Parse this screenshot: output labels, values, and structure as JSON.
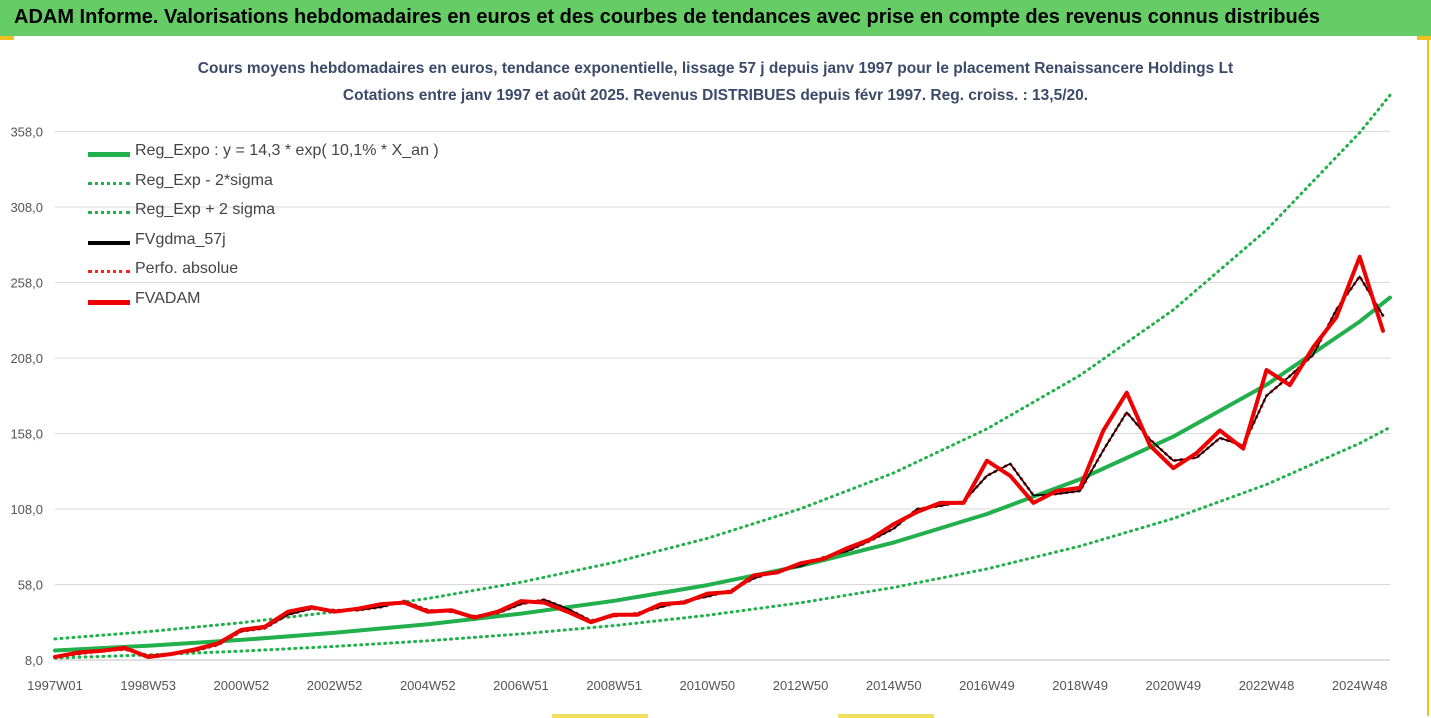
{
  "header": {
    "title": "ADAM Informe. Valorisations hebdomadaires en euros et des courbes de tendances avec prise en compte des revenus connus distribués"
  },
  "chart_data": {
    "type": "line",
    "title_line1": "Cours moyens hebdomadaires en euros, tendance exponentielle, lissage 57 j depuis janv 1997 pour le placement Renaissancere Holdings Lt",
    "title_line2": "Cotations entre janv 1997 et août 2025.  Revenus DISTRIBUES depuis févr 1997.  Reg. croiss. : 13,5/20.",
    "xlabel": "",
    "ylabel": "",
    "ylim": [
      8.0,
      400.0
    ],
    "xlim": [
      1997.0,
      2025.65
    ],
    "y_ticks": [
      "8,0",
      "58,0",
      "108,0",
      "158,0",
      "208,0",
      "258,0",
      "308,0",
      "358,0"
    ],
    "y_tick_values": [
      8,
      58,
      108,
      158,
      208,
      258,
      308,
      358
    ],
    "x_ticks": [
      "1997W01",
      "1998W53",
      "2000W52",
      "2002W52",
      "2004W52",
      "2006W51",
      "2008W51",
      "2010W50",
      "2012W50",
      "2014W50",
      "2016W49",
      "2018W49",
      "2020W49",
      "2022W48",
      "2024W48"
    ],
    "x_tick_values": [
      1997.0,
      1999.0,
      2001.0,
      2003.0,
      2005.0,
      2007.0,
      2009.0,
      2011.0,
      2013.0,
      2015.0,
      2017.0,
      2019.0,
      2021.0,
      2023.0,
      2025.0
    ],
    "grid": "horizontal",
    "legend_position": "top-left",
    "series": [
      {
        "name": "Reg_Expo : y = 14,3 * exp( 10,1% *  X_an )",
        "color": "#21b04b",
        "style": "solid-thick",
        "x": [
          1997.0,
          1999.0,
          2001.0,
          2003.0,
          2005.0,
          2007.0,
          2009.0,
          2011.0,
          2013.0,
          2015.0,
          2017.0,
          2019.0,
          2021.0,
          2023.0,
          2025.0,
          2025.65
        ],
        "values": [
          14.3,
          17.5,
          21.3,
          26.0,
          31.7,
          38.7,
          47.2,
          57.6,
          70.3,
          85.8,
          104.7,
          127.7,
          155.9,
          190.2,
          232.1,
          248.0
        ]
      },
      {
        "name": "Reg_Exp - 2*sigma",
        "color": "#21b04b",
        "style": "dotted",
        "x": [
          1997.0,
          1999.0,
          2001.0,
          2003.0,
          2005.0,
          2007.0,
          2009.0,
          2011.0,
          2013.0,
          2015.0,
          2017.0,
          2019.0,
          2021.0,
          2023.0,
          2025.0,
          2025.65
        ],
        "values": [
          9.3,
          11.4,
          13.9,
          17.0,
          20.7,
          25.3,
          30.8,
          37.6,
          45.9,
          56.0,
          68.3,
          83.4,
          101.7,
          124.2,
          151.5,
          162.0
        ]
      },
      {
        "name": "Reg_Exp + 2 sigma",
        "color": "#21b04b",
        "style": "dotted",
        "x": [
          1997.0,
          1999.0,
          2001.0,
          2003.0,
          2005.0,
          2007.0,
          2009.0,
          2011.0,
          2013.0,
          2015.0,
          2017.0,
          2019.0,
          2021.0,
          2023.0,
          2025.0,
          2025.65
        ],
        "values": [
          22.0,
          26.8,
          32.7,
          39.9,
          48.7,
          59.5,
          72.6,
          88.6,
          108.1,
          131.9,
          161.0,
          196.5,
          239.8,
          292.7,
          357.2,
          382.0
        ]
      },
      {
        "name": "FVgdma_57j",
        "color": "#000000",
        "style": "solid",
        "x": [
          1997.0,
          1997.5,
          1998.0,
          1998.5,
          1999.0,
          1999.5,
          2000.0,
          2000.5,
          2001.0,
          2001.5,
          2002.0,
          2002.5,
          2003.0,
          2003.5,
          2004.0,
          2004.5,
          2005.0,
          2005.5,
          2006.0,
          2006.5,
          2007.0,
          2007.5,
          2008.0,
          2008.5,
          2009.0,
          2009.5,
          2010.0,
          2010.5,
          2011.0,
          2011.5,
          2012.0,
          2012.5,
          2013.0,
          2013.5,
          2014.0,
          2014.5,
          2015.0,
          2015.5,
          2016.0,
          2016.5,
          2017.0,
          2017.5,
          2018.0,
          2018.5,
          2019.0,
          2019.5,
          2020.0,
          2020.5,
          2021.0,
          2021.5,
          2022.0,
          2022.5,
          2023.0,
          2023.5,
          2024.0,
          2024.5,
          2025.0,
          2025.5
        ],
        "values": [
          10,
          12,
          14,
          15,
          11,
          12,
          14,
          18,
          27,
          29,
          38,
          42,
          41,
          41,
          43,
          47,
          41,
          40,
          37,
          39,
          45,
          48,
          42,
          34,
          37,
          39,
          43,
          47,
          50,
          54,
          62,
          67,
          70,
          76,
          80,
          87,
          95,
          108,
          110,
          113,
          130,
          138,
          117,
          118,
          120,
          147,
          172,
          154,
          140,
          142,
          155,
          150,
          183,
          196,
          210,
          240,
          262,
          236
        ]
      },
      {
        "name": "Perfo. absolue",
        "color": "#ff2020",
        "style": "dotted",
        "x": [
          1997.0,
          1997.5,
          1998.0,
          1998.5,
          1999.0,
          1999.5,
          2000.0,
          2000.5,
          2001.0,
          2001.5,
          2002.0,
          2002.5,
          2003.0,
          2003.5,
          2004.0,
          2004.5,
          2005.0,
          2005.5,
          2006.0,
          2006.5,
          2007.0,
          2007.5,
          2008.0,
          2008.5,
          2009.0,
          2009.5,
          2010.0,
          2010.5,
          2011.0,
          2011.5,
          2012.0,
          2012.5,
          2013.0,
          2013.5,
          2014.0,
          2014.5,
          2015.0,
          2015.5,
          2016.0,
          2016.5,
          2017.0,
          2017.5,
          2018.0,
          2018.5,
          2019.0,
          2019.5,
          2020.0,
          2020.5,
          2021.0,
          2021.5,
          2022.0,
          2022.5,
          2023.0,
          2023.5,
          2024.0,
          2024.5,
          2025.0,
          2025.5
        ],
        "values": [
          10,
          12,
          14,
          15,
          11,
          12,
          14,
          18,
          27,
          29,
          38,
          42,
          41,
          41,
          43,
          47,
          41,
          40,
          37,
          39,
          45,
          48,
          42,
          34,
          37,
          39,
          43,
          47,
          50,
          54,
          62,
          67,
          70,
          76,
          80,
          87,
          95,
          108,
          110,
          113,
          130,
          138,
          117,
          118,
          120,
          147,
          172,
          154,
          140,
          142,
          155,
          150,
          183,
          196,
          210,
          240,
          262,
          236
        ]
      },
      {
        "name": "FVADAM",
        "color": "#ee0000",
        "style": "solid-thick",
        "x": [
          1997.0,
          1997.5,
          1998.0,
          1998.5,
          1999.0,
          1999.5,
          2000.0,
          2000.5,
          2001.0,
          2001.5,
          2002.0,
          2002.5,
          2003.0,
          2003.5,
          2004.0,
          2004.5,
          2005.0,
          2005.5,
          2006.0,
          2006.5,
          2007.0,
          2007.5,
          2008.0,
          2008.5,
          2009.0,
          2009.5,
          2010.0,
          2010.5,
          2011.0,
          2011.5,
          2012.0,
          2012.5,
          2013.0,
          2013.5,
          2014.0,
          2014.5,
          2015.0,
          2015.5,
          2016.0,
          2016.5,
          2017.0,
          2017.5,
          2018.0,
          2018.5,
          2019.0,
          2019.5,
          2020.0,
          2020.5,
          2021.0,
          2021.5,
          2022.0,
          2022.5,
          2023.0,
          2023.5,
          2024.0,
          2024.5,
          2025.0,
          2025.5
        ],
        "values": [
          10,
          13,
          14,
          16,
          10,
          12,
          15,
          19,
          28,
          30,
          40,
          43,
          40,
          42,
          45,
          46,
          40,
          41,
          36,
          40,
          47,
          46,
          40,
          33,
          38,
          38,
          45,
          46,
          52,
          53,
          64,
          66,
          72,
          75,
          82,
          88,
          98,
          106,
          112,
          112,
          140,
          130,
          112,
          120,
          122,
          160,
          185,
          150,
          135,
          145,
          160,
          148,
          200,
          190,
          215,
          235,
          275,
          226
        ]
      }
    ]
  }
}
